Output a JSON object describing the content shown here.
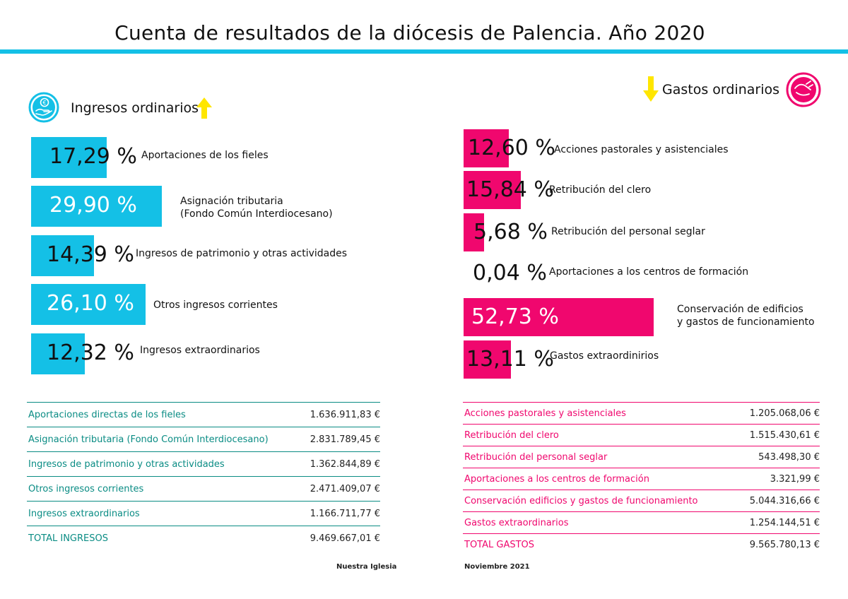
{
  "title": "Cuenta de resultados de la diócesis de Palencia. Año 2020",
  "colors": {
    "cyan": "#14c0e6",
    "magenta": "#f0076e",
    "yellow": "#ffe600",
    "teal": "#0a8c84",
    "black": "#111111"
  },
  "ingresos": {
    "section_title": "Ingresos ordinarios",
    "icon": "coin-in-hand-icon",
    "arrow": "arrow-up-icon"
  },
  "gastos": {
    "section_title": "Gastos ordinarios",
    "icon": "hand-payment-icon",
    "arrow": "arrow-down-icon"
  },
  "chart_data": [
    {
      "type": "bar",
      "orientation": "horizontal",
      "title": "Ingresos ordinarios",
      "unit": "%",
      "categories": [
        "Aportaciones de los fieles",
        "Asignación tributaria\n(Fondo Común Interdiocesano)",
        "Ingresos de patrimonio y otras actividades",
        "Otros ingresos corrientes",
        "Ingresos extraordinarios"
      ],
      "values": [
        17.29,
        29.9,
        14.39,
        26.1,
        12.32
      ],
      "value_labels": [
        "17,29 %",
        "29,90 %",
        "14,39 %",
        "26,10 %",
        "12,32 %"
      ],
      "color": "#14c0e6"
    },
    {
      "type": "bar",
      "orientation": "horizontal",
      "title": "Gastos ordinarios",
      "unit": "%",
      "categories": [
        "Acciones pastorales y asistenciales",
        "Retribución del clero",
        "Retribución del personal seglar",
        "Aportaciones a los centros de formación",
        "Conservación de edificios\ny gastos de funcionamiento",
        "Gastos extraordinirios"
      ],
      "values": [
        12.6,
        15.84,
        5.68,
        0.04,
        52.73,
        13.11
      ],
      "value_labels": [
        "12,60 %",
        "15,84 %",
        "5,68 %",
        "0,04 %",
        "52,73 %",
        "13,11 %"
      ],
      "color": "#f0076e"
    }
  ],
  "ingresos_table": {
    "rows": [
      {
        "label": "Aportaciones directas de los fieles",
        "value": "1.636.911,83 €"
      },
      {
        "label": "Asignación tributaria (Fondo Común Interdiocesano)",
        "value": "2.831.789,45 €"
      },
      {
        "label": "Ingresos de patrimonio y otras actividades",
        "value": "1.362.844,89 €"
      },
      {
        "label": "Otros ingresos corrientes",
        "value": "2.471.409,07 €"
      },
      {
        "label": "Ingresos extraordinarios",
        "value": "1.166.711,77 €"
      }
    ],
    "total": {
      "label": "TOTAL INGRESOS",
      "value": "9.469.667,01 €"
    }
  },
  "gastos_table": {
    "rows": [
      {
        "label": "Acciones pastorales y asistenciales",
        "value": "1.205.068,06 €"
      },
      {
        "label": "Retribución del clero",
        "value": "1.515.430,61 €"
      },
      {
        "label": "Retribución del personal seglar",
        "value": "543.498,30 €"
      },
      {
        "label": "Aportaciones a los centros de formación",
        "value": "3.321,99 €"
      },
      {
        "label": "Conservación edificios y gastos de funcionamiento",
        "value": "5.044.316,66 €"
      },
      {
        "label": "Gastos extraordinarios",
        "value": "1.254.144,51 €"
      }
    ],
    "total": {
      "label": "TOTAL GASTOS",
      "value": "9.565.780,13 €"
    }
  },
  "footer": {
    "left": "Nuestra Iglesia",
    "right": "Noviembre 2021"
  }
}
